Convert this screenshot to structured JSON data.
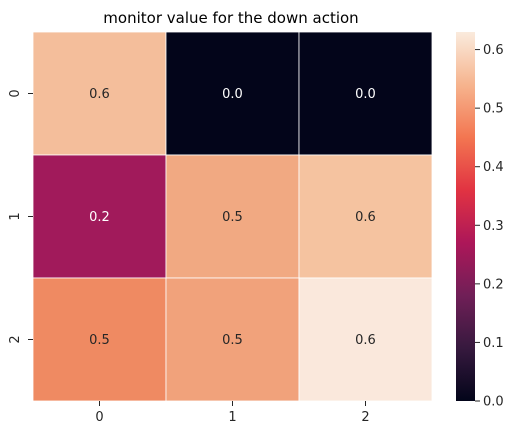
{
  "chart_data": {
    "type": "heatmap",
    "title": "monitor value for the down action",
    "xlabel": "",
    "ylabel": "",
    "x_categories": [
      "0",
      "1",
      "2"
    ],
    "y_categories": [
      "0",
      "1",
      "2"
    ],
    "values": [
      [
        0.6,
        0.0,
        0.0
      ],
      [
        0.2,
        0.5,
        0.6
      ],
      [
        0.5,
        0.5,
        0.6
      ]
    ],
    "cell_labels": [
      [
        "0.6",
        "0.0",
        "0.0"
      ],
      [
        "0.2",
        "0.5",
        "0.6"
      ],
      [
        "0.5",
        "0.5",
        "0.6"
      ]
    ],
    "cell_colors": [
      [
        "#f4be9b",
        "#03051a",
        "#03051a"
      ],
      [
        "#a11a5b",
        "#f1a982",
        "#f5c3a0"
      ],
      [
        "#ef8a62",
        "#f1a27b",
        "#fae8dc"
      ]
    ],
    "colorbar": {
      "range": [
        0.0,
        0.63
      ],
      "ticks": [
        "0.0",
        "0.1",
        "0.2",
        "0.3",
        "0.4",
        "0.5",
        "0.6"
      ],
      "colormap": "rocket"
    },
    "colormap_stops": [
      "#03051a",
      "#36193e",
      "#701f57",
      "#ad1759",
      "#e13342",
      "#f37651",
      "#f6b48e",
      "#faebdd"
    ],
    "grid": false
  }
}
